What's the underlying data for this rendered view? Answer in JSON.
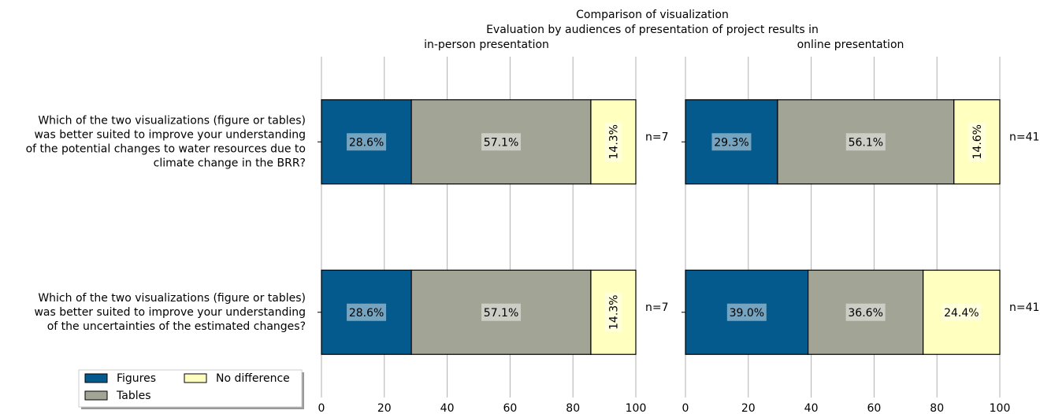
{
  "title": [
    "Comparison of visualization",
    "Evaluation by audiences of presentation of project results in"
  ],
  "chart_data": [
    {
      "type": "stacked-barh",
      "subtitle": "in-person presentation",
      "categories": [
        [
          "Which of the two visualizations (figure or tables)",
          "was better suited to improve your understanding",
          "of the potential changes to water resources due to",
          "climate change in the BRR?"
        ],
        [
          "Which of the two visualizations (figure or tables)",
          "was better suited to improve your understanding",
          "of the uncertainties of the estimated changes?"
        ]
      ],
      "annotations": [
        "n=7",
        "n=7"
      ],
      "series": [
        {
          "name": "Figures",
          "color": "#045a8d",
          "values": [
            28.6,
            28.6
          ],
          "value_labels": [
            "28.6%",
            "28.6%"
          ]
        },
        {
          "name": "Tables",
          "color": "#a2a596",
          "values": [
            57.1,
            57.1
          ],
          "value_labels": [
            "57.1%",
            "57.1%"
          ]
        },
        {
          "name": "No difference",
          "color": "#ffffbf",
          "values": [
            14.3,
            14.3
          ],
          "value_labels": [
            "14.3%",
            "14.3%"
          ]
        }
      ],
      "xlim": [
        0,
        100
      ],
      "xticks": [
        0,
        20,
        40,
        60,
        80,
        100
      ],
      "grid": true,
      "legend": "lower left"
    },
    {
      "type": "stacked-barh",
      "subtitle": "online presentation",
      "annotations": [
        "n=41",
        "n=41"
      ],
      "series": [
        {
          "color": "#045a8d",
          "values": [
            29.3,
            39.0
          ],
          "value_labels": [
            "29.3%",
            "39.0%"
          ]
        },
        {
          "color": "#a2a596",
          "values": [
            56.1,
            36.6
          ],
          "value_labels": [
            "56.1%",
            "36.6%"
          ]
        },
        {
          "color": "#ffffbf",
          "values": [
            14.6,
            24.4
          ],
          "value_labels": [
            "14.6%",
            "24.4%"
          ]
        }
      ],
      "xlim": [
        0,
        100
      ],
      "xticks": [
        0,
        20,
        40,
        60,
        80,
        100
      ],
      "grid": true
    }
  ]
}
